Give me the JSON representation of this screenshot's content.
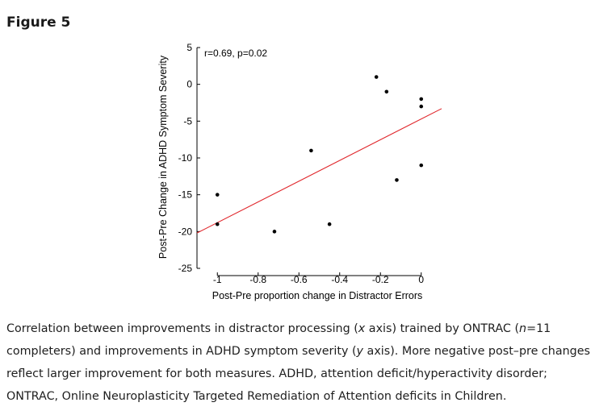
{
  "figure": {
    "heading": "Figure 5"
  },
  "chart_data": {
    "type": "scatter",
    "xlabel": "Post-Pre proportion change in Distractor Errors",
    "ylabel": "Post-Pre Change in ADHD Symptom Severity",
    "xlim": [
      -1.1,
      0.1
    ],
    "ylim": [
      -25,
      5
    ],
    "xticks": [
      -1,
      -0.8,
      -0.6,
      -0.4,
      -0.2,
      0
    ],
    "xtick_labels": [
      "-1",
      "-0.8",
      "-0.6",
      "-0.4",
      "-0.2",
      "0"
    ],
    "yticks": [
      5,
      0,
      -5,
      -10,
      -15,
      -20,
      -25
    ],
    "ytick_labels": [
      "5",
      "0",
      "-5",
      "-10",
      "-15",
      "-20",
      "-25"
    ],
    "annotation": "r=0.69, p=0.02",
    "point_color": "#000000",
    "fit_color": "#e0262b",
    "points": [
      {
        "x": -1.0,
        "y": -15
      },
      {
        "x": -1.0,
        "y": -19
      },
      {
        "x": -0.72,
        "y": -20
      },
      {
        "x": -0.54,
        "y": -9
      },
      {
        "x": -0.45,
        "y": -19
      },
      {
        "x": -0.22,
        "y": 1
      },
      {
        "x": -0.17,
        "y": -1
      },
      {
        "x": -0.12,
        "y": -13
      },
      {
        "x": 0.0,
        "y": -2
      },
      {
        "x": 0.0,
        "y": -3
      },
      {
        "x": 0.0,
        "y": -11
      }
    ],
    "fit_line": {
      "x": [
        -1.1,
        0.1
      ],
      "y": [
        -20.2,
        -3.3
      ]
    },
    "grid": false,
    "legend": "none"
  },
  "caption": {
    "p1": "Correlation between improvements in distractor processing (",
    "x_var": "x",
    "p2": " axis) trained by ONTRAC (",
    "n_var": "n",
    "p3": "=11 completers) and improvements in ADHD symptom severity (",
    "y_var": "y",
    "p4": " axis). More negative post–pre changes reflect larger improvement for both measures. ADHD, attention deficit/hyperactivity disorder; ONTRAC, Online Neuroplasticity Targeted Remediation of Attention deficits in Children."
  }
}
